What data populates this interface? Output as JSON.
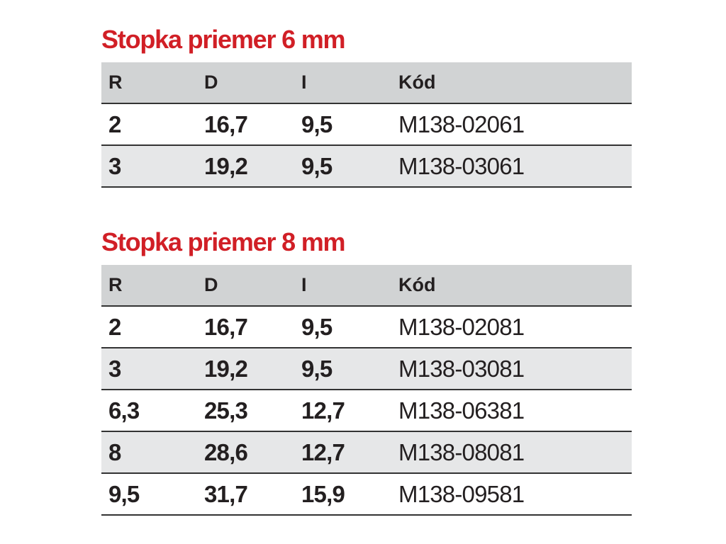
{
  "sections": [
    {
      "title": "Stopka priemer 6 mm",
      "headers": {
        "r": "R",
        "d": "D",
        "l": "I",
        "k": "Kód"
      },
      "rows": [
        {
          "r": "2",
          "d": "16,7",
          "l": "9,5",
          "k": "M138-02061"
        },
        {
          "r": "3",
          "d": "19,2",
          "l": "9,5",
          "k": "M138-03061"
        }
      ]
    },
    {
      "title": "Stopka priemer 8 mm",
      "headers": {
        "r": "R",
        "d": "D",
        "l": "I",
        "k": "Kód"
      },
      "rows": [
        {
          "r": "2",
          "d": "16,7",
          "l": "9,5",
          "k": "M138-02081"
        },
        {
          "r": "3",
          "d": "19,2",
          "l": "9,5",
          "k": "M138-03081"
        },
        {
          "r": "6,3",
          "d": "25,3",
          "l": "12,7",
          "k": "M138-06381"
        },
        {
          "r": "8",
          "d": "28,6",
          "l": "12,7",
          "k": "M138-08081"
        },
        {
          "r": "9,5",
          "d": "31,7",
          "l": "15,9",
          "k": "M138-09581"
        }
      ]
    }
  ],
  "colors": {
    "title": "#d11f26",
    "header_bg": "#d1d3d4",
    "alt_row_bg": "#e6e7e8",
    "text": "#231f20",
    "rule": "#333333"
  }
}
